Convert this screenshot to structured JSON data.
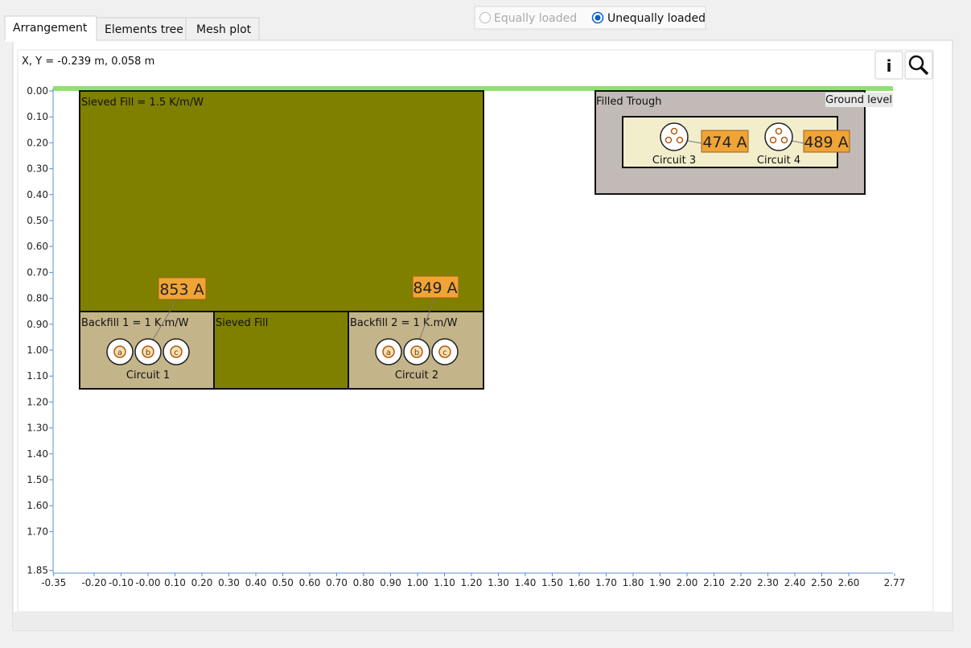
{
  "tabs": [
    "Arrangement",
    "Elements tree",
    "Mesh plot"
  ],
  "loading_options": [
    "Equally loaded",
    "Unequally loaded"
  ],
  "cursor_readout": "X, Y = -0.239 m, 0.058 m",
  "info_button": "i",
  "plot": {
    "yticks": [
      "0.00",
      "0.10",
      "0.20",
      "0.30",
      "0.40",
      "0.50",
      "0.60",
      "0.70",
      "0.80",
      "0.90",
      "1.00",
      "1.10",
      "1.20",
      "1.30",
      "1.40",
      "1.50",
      "1.60",
      "1.70",
      "1.85"
    ],
    "xticks": [
      "-0.35",
      "-0.20",
      "-0.10",
      "-0.00",
      "0.10",
      "0.20",
      "0.30",
      "0.40",
      "0.50",
      "0.60",
      "0.70",
      "0.80",
      "0.90",
      "1.00",
      "1.10",
      "1.20",
      "1.30",
      "1.40",
      "1.50",
      "1.60",
      "1.70",
      "1.80",
      "1.90",
      "2.00",
      "2.10",
      "2.20",
      "2.30",
      "2.40",
      "2.50",
      "2.60",
      "2.77"
    ],
    "regions": [
      "Sieved Fill = 1.5 K/m/W",
      "Backfill 1 = 1 K.m/W",
      "Sieved Fill",
      "Backfill 2 = 1 K.m/W",
      "Filled Trough",
      "Ground level"
    ],
    "circuits": [
      "Circuit 1",
      "Circuit 2",
      "Circuit 3",
      "Circuit 4"
    ],
    "currents": [
      "853 A",
      "849 A",
      "474 A",
      "489 A"
    ],
    "phases": [
      "a",
      "b",
      "c"
    ]
  }
}
